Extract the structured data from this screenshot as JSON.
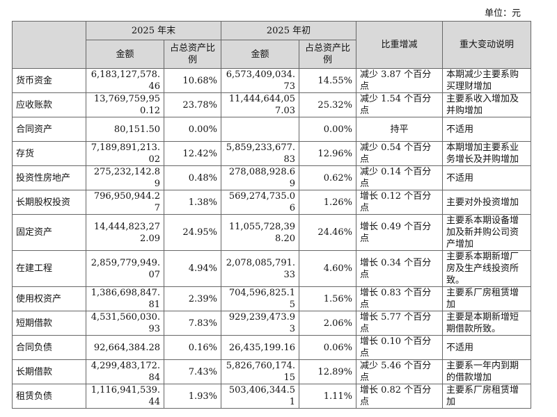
{
  "unit_label": "单位：元",
  "header": {
    "period_end": "2025 年末",
    "period_begin": "2025 年初",
    "amount": "金额",
    "ratio": "占总资产比例",
    "change": "比重增减",
    "explanation": "重大变动说明"
  },
  "rows": [
    {
      "item": "货币资金",
      "end_amount": "6,183,127,578.46",
      "end_ratio": "10.68%",
      "begin_amount": "6,573,409,034.73",
      "begin_ratio": "14.55%",
      "change": "减少 3.87 个百分点",
      "note": "本期减少主要系购买理财增加"
    },
    {
      "item": "应收账款",
      "end_amount": "13,769,759,950.12",
      "end_ratio": "23.78%",
      "begin_amount": "11,444,644,057.03",
      "begin_ratio": "25.32%",
      "change": "减少 1.54 个百分点",
      "note": "主要系收入增加及并购增加"
    },
    {
      "item": "合同资产",
      "end_amount": "80,151.50",
      "end_ratio": "0.00%",
      "begin_amount": "",
      "begin_ratio": "0.00%",
      "change": "持平",
      "note": "不适用"
    },
    {
      "item": "存货",
      "end_amount": "7,189,891,213.02",
      "end_ratio": "12.42%",
      "begin_amount": "5,859,233,677.83",
      "begin_ratio": "12.96%",
      "change": "减少 0.54 个百分点",
      "note": "本期增加主要系业务增长及并购增加"
    },
    {
      "item": "投资性房地产",
      "end_amount": "275,232,142.89",
      "end_ratio": "0.48%",
      "begin_amount": "278,088,928.69",
      "begin_ratio": "0.62%",
      "change": "减少 0.14 个百分点",
      "note": "不适用"
    },
    {
      "item": "长期股权投资",
      "end_amount": "796,950,944.27",
      "end_ratio": "1.38%",
      "begin_amount": "569,274,735.06",
      "begin_ratio": "1.26%",
      "change": "增长 0.12 个百分点",
      "note": "主要对外投资增加"
    },
    {
      "item": "固定资产",
      "end_amount": "14,444,823,272.09",
      "end_ratio": "24.95%",
      "begin_amount": "11,055,728,398.20",
      "begin_ratio": "24.46%",
      "change": "增长 0.49 个百分点",
      "note": "主要系本期设备增加及新并购公司资产增加"
    },
    {
      "item": "在建工程",
      "end_amount": "2,859,779,949.07",
      "end_ratio": "4.94%",
      "begin_amount": "2,078,085,791.33",
      "begin_ratio": "4.60%",
      "change": "增长 0.34 个百分点",
      "note": "主要系本期新增厂房及生产线投资所致。"
    },
    {
      "item": "使用权资产",
      "end_amount": "1,386,698,847.81",
      "end_ratio": "2.39%",
      "begin_amount": "704,596,825.15",
      "begin_ratio": "1.56%",
      "change": "增长 0.83 个百分点",
      "note": "主要系厂房租赁增加"
    },
    {
      "item": "短期借款",
      "end_amount": "4,531,560,030.93",
      "end_ratio": "7.83%",
      "begin_amount": "929,239,473.93",
      "begin_ratio": "2.06%",
      "change": "增长 5.77 个百分点",
      "note": "主要是本期新增短期借款所致。"
    },
    {
      "item": "合同负债",
      "end_amount": "92,664,384.28",
      "end_ratio": "0.16%",
      "begin_amount": "26,435,199.16",
      "begin_ratio": "0.06%",
      "change": "增长 0.10 个百分点",
      "note": "不适用"
    },
    {
      "item": "长期借款",
      "end_amount": "4,299,483,172.84",
      "end_ratio": "7.43%",
      "begin_amount": "5,826,760,174.15",
      "begin_ratio": "12.89%",
      "change": "减少 5.46 个百分点",
      "note": "主要系一年内到期的借款增加"
    },
    {
      "item": "租赁负债",
      "end_amount": "1,116,941,539.44",
      "end_ratio": "1.93%",
      "begin_amount": "503,406,344.51",
      "begin_ratio": "1.11%",
      "change": "增长 0.82 个百分点",
      "note": "主要系厂房租赁增加"
    }
  ]
}
